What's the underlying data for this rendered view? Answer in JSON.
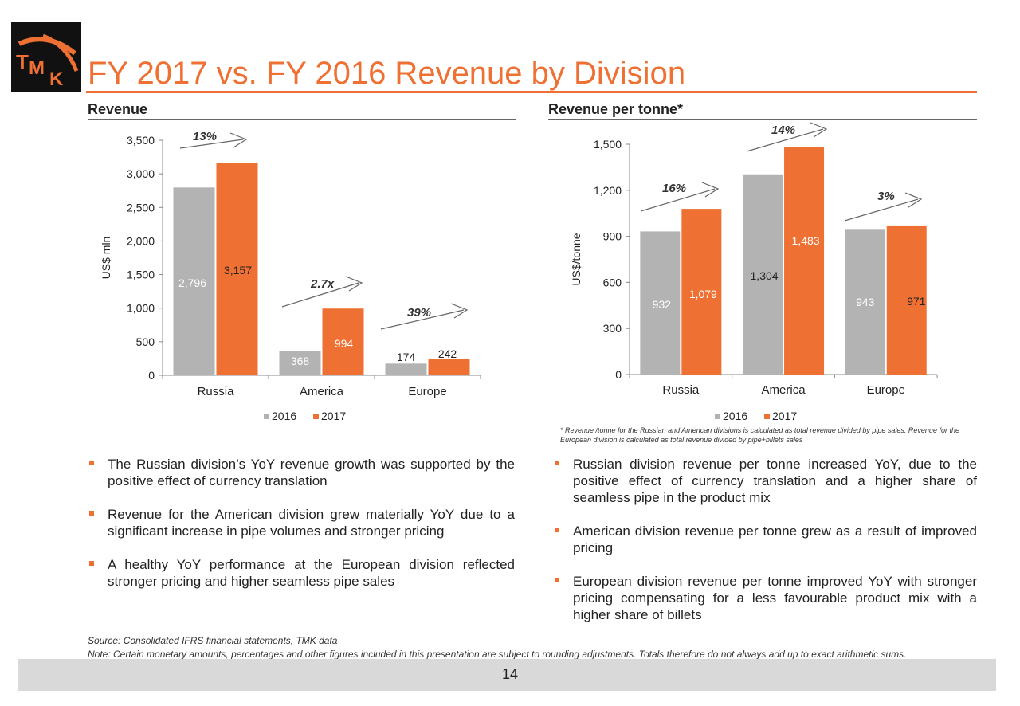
{
  "title": "FY 2017 vs. FY 2016 Revenue by Division",
  "colors": {
    "accent": "#ee7033",
    "bar_2016": "#b3b3b3",
    "bar_2017": "#ee7033"
  },
  "sections": {
    "left_heading": "Revenue",
    "right_heading": "Revenue per tonne*"
  },
  "chart_data": [
    {
      "type": "bar",
      "categories": [
        "Russia",
        "America",
        "Europe"
      ],
      "series": [
        {
          "name": "2016",
          "values": [
            2796,
            368,
            174
          ],
          "labels": [
            "2,796",
            "368",
            "174"
          ]
        },
        {
          "name": "2017",
          "values": [
            3157,
            994,
            242
          ],
          "labels": [
            "3,157",
            "994",
            "242"
          ]
        }
      ],
      "ylabel": "US$ mln",
      "ylim": [
        0,
        3500
      ],
      "yticks": [
        0,
        500,
        1000,
        1500,
        2000,
        2500,
        3000,
        3500
      ],
      "ytick_labels": [
        "0",
        "500",
        "1,000",
        "1,500",
        "2,000",
        "2,500",
        "3,000",
        "3,500"
      ],
      "growth_labels": [
        "13%",
        "2.7x",
        "39%"
      ],
      "legend": [
        "2016",
        "2017"
      ],
      "legend_position": "bottom",
      "grid": false
    },
    {
      "type": "bar",
      "categories": [
        "Russia",
        "America",
        "Europe"
      ],
      "series": [
        {
          "name": "2016",
          "values": [
            932,
            1304,
            943
          ],
          "labels": [
            "932",
            "1,304",
            "943"
          ]
        },
        {
          "name": "2017",
          "values": [
            1079,
            1483,
            971
          ],
          "labels": [
            "1,079",
            "1,483",
            "971"
          ]
        }
      ],
      "ylabel": "US$/tonne",
      "ylim": [
        0,
        1500
      ],
      "yticks": [
        0,
        300,
        600,
        900,
        1200,
        1500
      ],
      "ytick_labels": [
        "0",
        "300",
        "600",
        "900",
        "1,200",
        "1,500"
      ],
      "growth_labels": [
        "16%",
        "14%",
        "3%"
      ],
      "legend": [
        "2016",
        "2017"
      ],
      "legend_position": "bottom",
      "grid": false
    }
  ],
  "footnote": "* Revenue /tonne for the Russian and American divisions  is calculated as total revenue divided by pipe sales. Revenue for the European division is calculated as total revenue divided by pipe+billets sales",
  "left_bullets": [
    "The Russian division’s YoY revenue growth was supported by the positive effect of currency translation",
    "Revenue for the American division grew materially YoY due to a significant increase in pipe volumes and stronger pricing",
    "A healthy YoY performance at the European division reflected stronger pricing and higher seamless pipe sales"
  ],
  "right_bullets": [
    "Russian division revenue per tonne increased YoY, due to the positive effect of currency translation and a higher share of seamless pipe in the product mix",
    "American division revenue per tonne grew as a result of improved pricing",
    "European division revenue per tonne improved YoY with stronger pricing compensating for a less favourable product mix with a higher share of billets"
  ],
  "source": "Source: Consolidated IFRS financial statements, TMK data",
  "note": "Note: Certain monetary amounts, percentages and other figures included in this presentation are subject to rounding adjustments. Totals therefore do not always add up to exact arithmetic sums.",
  "page_number": "14"
}
